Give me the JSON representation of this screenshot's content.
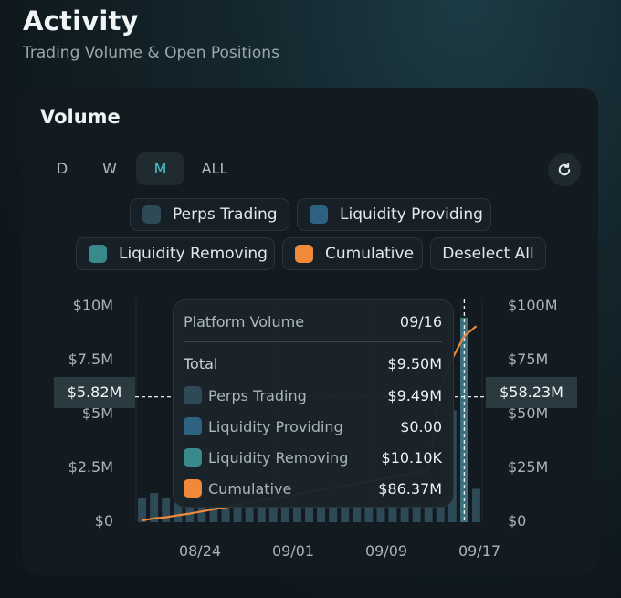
{
  "page": {
    "title": "Activity",
    "subtitle": "Trading Volume & Open Positions"
  },
  "card": {
    "title": "Volume",
    "tabs": [
      "D",
      "W",
      "M",
      "ALL"
    ],
    "active_tab": "M",
    "refresh_icon": "refresh-icon"
  },
  "legend": {
    "perps": "Perps Trading",
    "providing": "Liquidity Providing",
    "removing": "Liquidity Removing",
    "cumulative": "Cumulative",
    "deselect": "Deselect All"
  },
  "colors": {
    "perps": "#2e4a57",
    "providing": "#2f6280",
    "removing": "#3a8a8c",
    "cumulative": "#f08a3a",
    "accent": "#4fc4cc"
  },
  "crosshair": {
    "left_value": "$5.82M",
    "right_value": "$58.23M"
  },
  "tooltip": {
    "title": "Platform Volume",
    "date": "09/16",
    "rows": [
      {
        "label": "Total",
        "value": "$9.50M"
      },
      {
        "label": "Perps Trading",
        "value": "$9.49M"
      },
      {
        "label": "Liquidity Providing",
        "value": "$0.00"
      },
      {
        "label": "Liquidity Removing",
        "value": "$10.10K"
      },
      {
        "label": "Cumulative",
        "value": "$86.37M"
      }
    ]
  },
  "chart_data": {
    "type": "bar",
    "title": "Volume",
    "left_ticks": [
      "$0",
      "$2.5M",
      "$5M",
      "$7.5M",
      "$10M"
    ],
    "right_ticks": [
      "$0",
      "$25M",
      "$50M",
      "$75M",
      "$100M"
    ],
    "x_ticks": [
      "08/24",
      "09/01",
      "09/09",
      "09/17"
    ],
    "ylim": [
      0,
      10000000
    ],
    "y2lim": [
      0,
      100000000
    ],
    "highlight_index": 27,
    "series": [
      {
        "name": "Perps Trading",
        "values": [
          1.1,
          1.35,
          1.1,
          0.9,
          0.7,
          0.7,
          0.7,
          0.7,
          0.7,
          0.7,
          0.7,
          0.7,
          0.7,
          0.7,
          0.7,
          0.7,
          0.7,
          0.7,
          0.7,
          0.7,
          0.7,
          0.7,
          0.7,
          0.7,
          0.7,
          1.0,
          5.2,
          9.5,
          1.55
        ]
      },
      {
        "name": "Cumulative",
        "values": [
          0.8,
          1.8,
          2.3,
          3.2,
          4.0,
          5.0,
          6.0,
          7.0,
          8.0,
          9.0,
          10.0,
          11.0,
          12.0,
          13.0,
          14.0,
          15.0,
          16.0,
          17.0,
          18.0,
          19.0,
          20.0,
          21.0,
          22.0,
          23.0,
          24.0,
          62.0,
          76.0,
          86.37,
          91.0
        ]
      }
    ]
  }
}
